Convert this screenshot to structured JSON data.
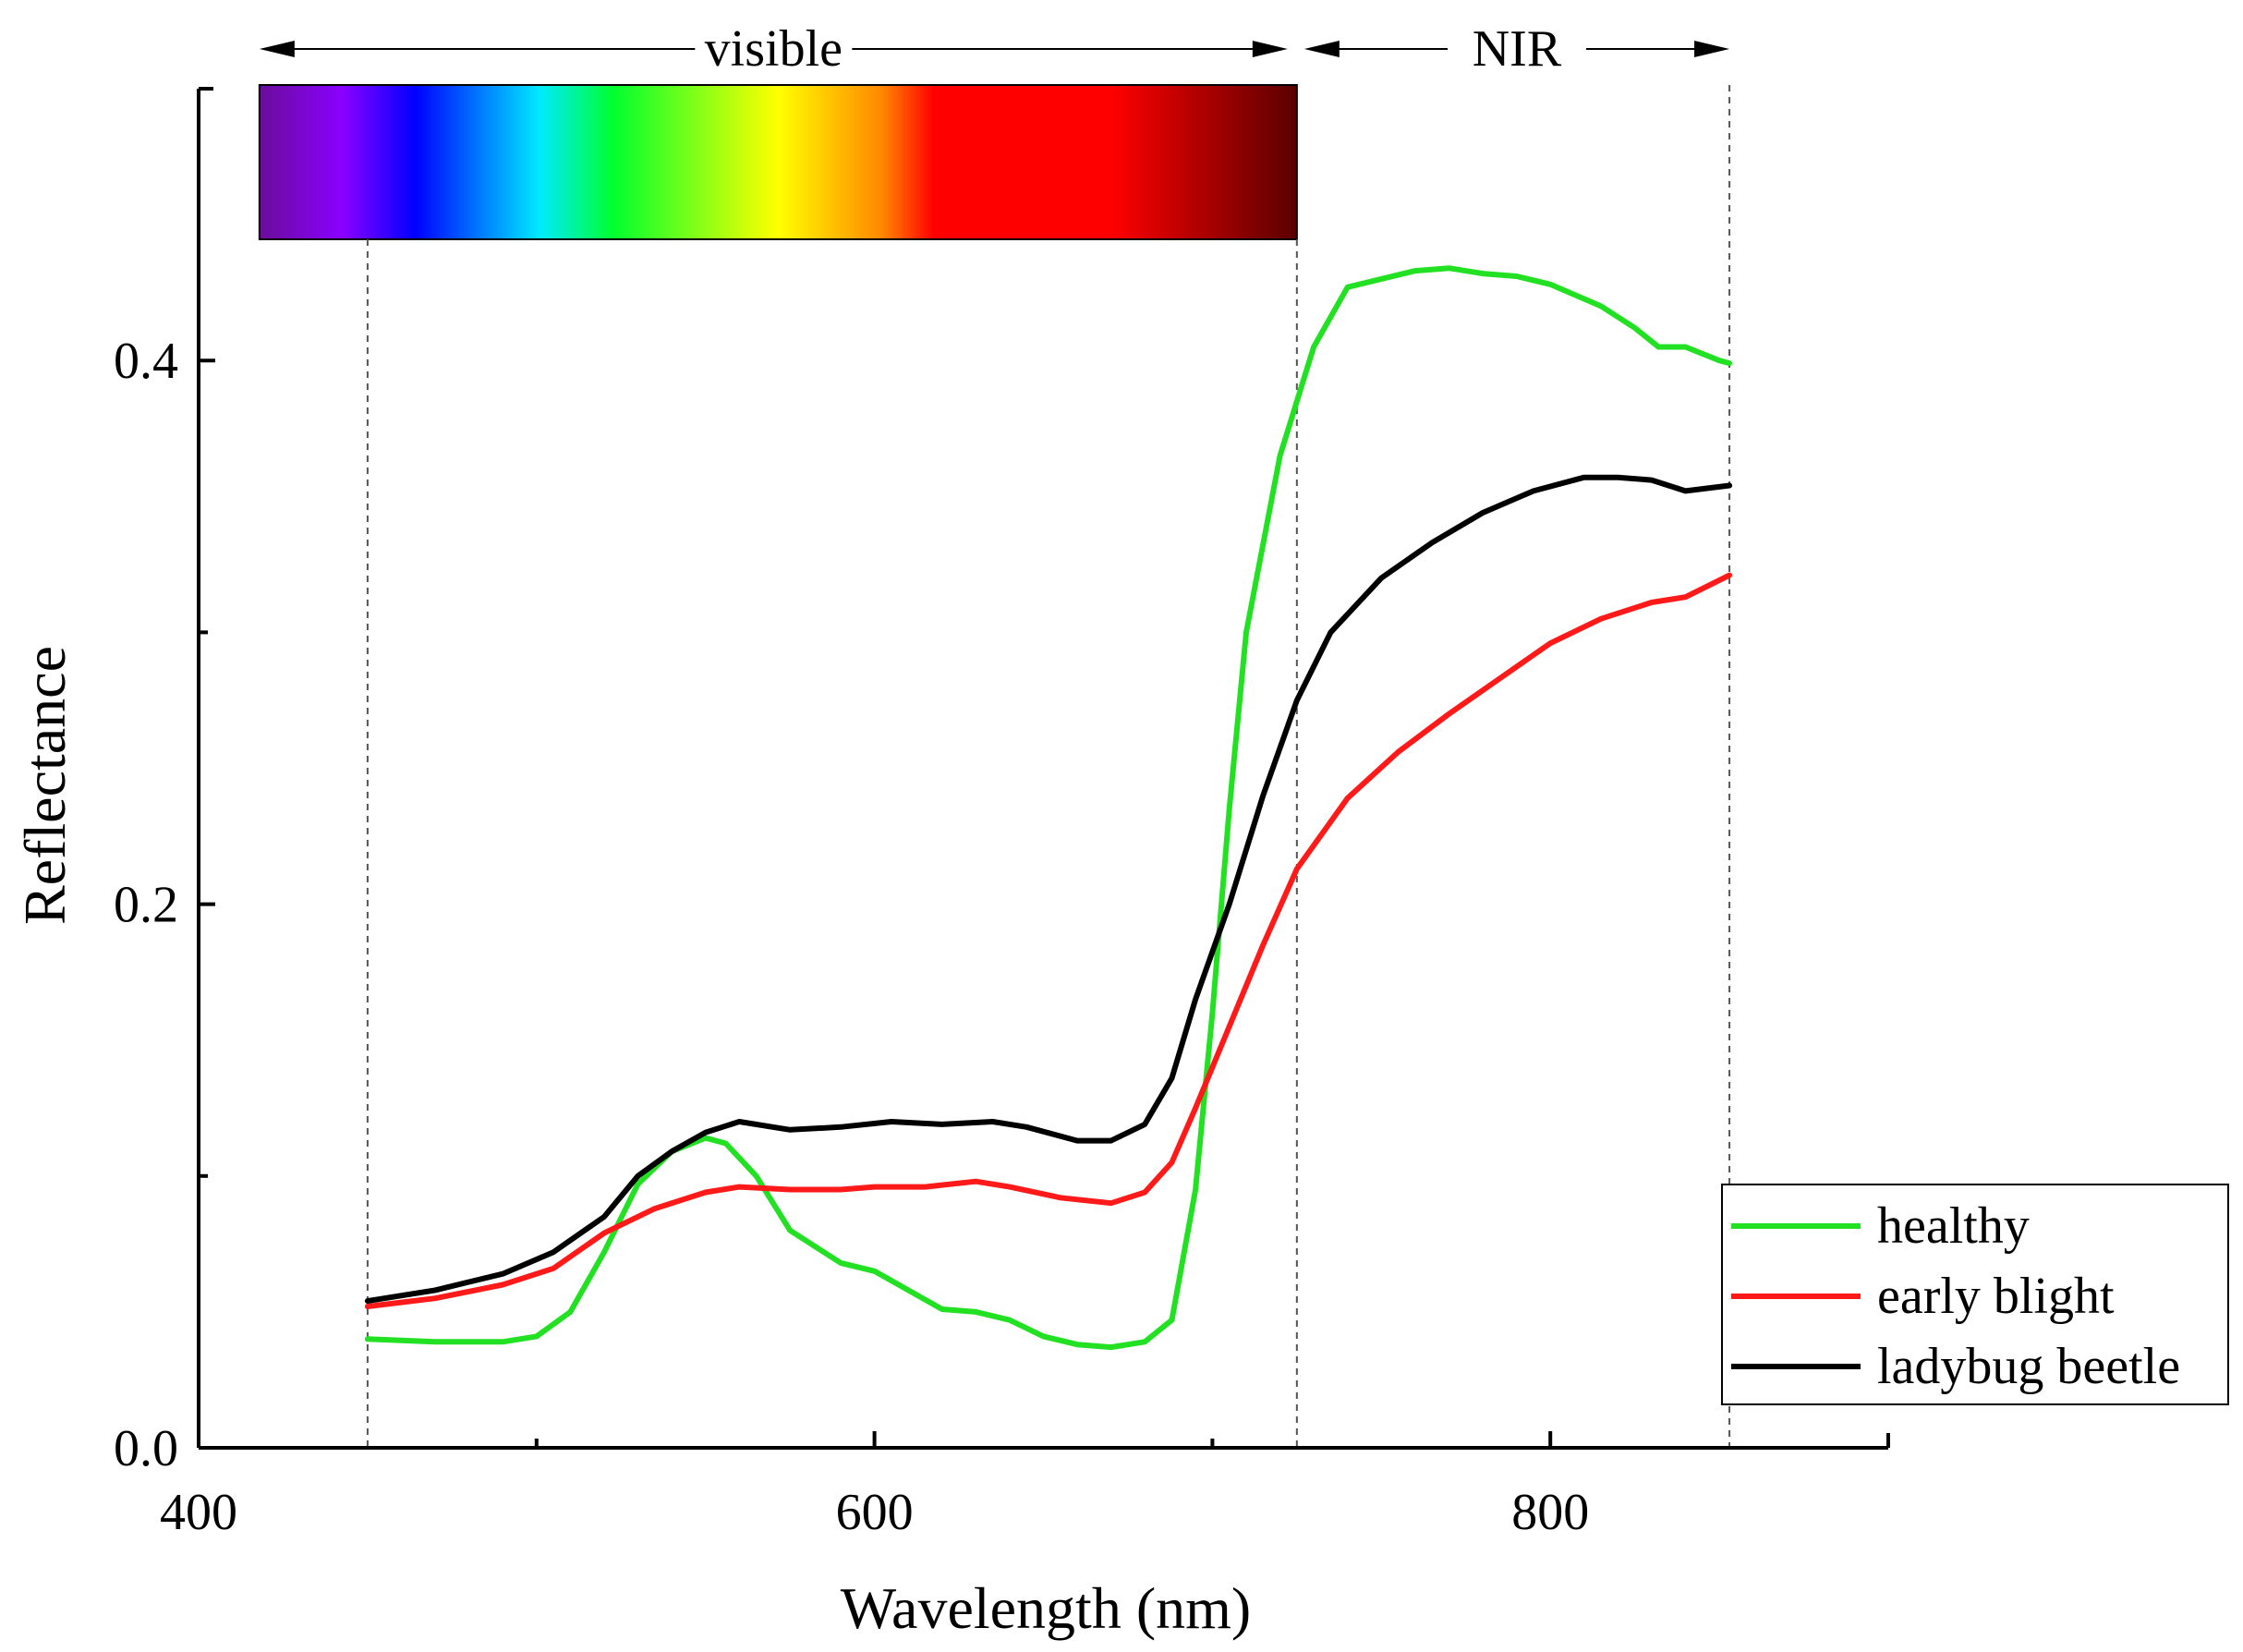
{
  "chart_data": {
    "type": "line",
    "title": "",
    "xlabel": "Wavelength (nm)",
    "ylabel": "Reflectance",
    "xlim": [
      400,
      900
    ],
    "ylim": [
      0,
      0.5
    ],
    "x_ticks": [
      400,
      600,
      800
    ],
    "x_ticks_minor": [
      500,
      700
    ],
    "y_ticks": [
      0.0,
      0.2,
      0.4
    ],
    "y_ticks_minor": [
      0.1,
      0.3
    ],
    "x_tick_labels": [
      "400",
      "600",
      "800"
    ],
    "y_tick_labels": [
      "0.0",
      "0.2",
      "0.4"
    ],
    "grid": false,
    "legend_position": "right",
    "region_markers": [
      450,
      725,
      853
    ],
    "regions": [
      {
        "label": "visible",
        "from": 418,
        "to": 725
      },
      {
        "label": "NIR",
        "from": 725,
        "to": 853
      }
    ],
    "spectrum_bar": {
      "from": 418,
      "to": 725,
      "colors": [
        "#6a0d9a",
        "#8a00ff",
        "#0000ff",
        "#00eaff",
        "#00ff30",
        "#ffff00",
        "#ff8800",
        "#ff0000",
        "#ff0000",
        "#5a0000"
      ],
      "stops": [
        0,
        0.08,
        0.15,
        0.27,
        0.34,
        0.5,
        0.6,
        0.65,
        0.82,
        1
      ]
    },
    "series": [
      {
        "name": "healthy",
        "color": "#22e022",
        "points": [
          [
            450,
            0.04
          ],
          [
            470,
            0.039
          ],
          [
            490,
            0.039
          ],
          [
            500,
            0.041
          ],
          [
            510,
            0.05
          ],
          [
            520,
            0.072
          ],
          [
            530,
            0.097
          ],
          [
            540,
            0.109
          ],
          [
            550,
            0.114
          ],
          [
            556,
            0.112
          ],
          [
            565,
            0.1
          ],
          [
            575,
            0.08
          ],
          [
            590,
            0.068
          ],
          [
            600,
            0.065
          ],
          [
            610,
            0.058
          ],
          [
            620,
            0.051
          ],
          [
            630,
            0.05
          ],
          [
            640,
            0.047
          ],
          [
            650,
            0.041
          ],
          [
            660,
            0.038
          ],
          [
            670,
            0.037
          ],
          [
            680,
            0.039
          ],
          [
            688,
            0.047
          ],
          [
            695,
            0.095
          ],
          [
            700,
            0.16
          ],
          [
            705,
            0.235
          ],
          [
            710,
            0.3
          ],
          [
            720,
            0.365
          ],
          [
            730,
            0.405
          ],
          [
            740,
            0.427
          ],
          [
            750,
            0.43
          ],
          [
            760,
            0.433
          ],
          [
            770,
            0.434
          ],
          [
            780,
            0.432
          ],
          [
            790,
            0.431
          ],
          [
            800,
            0.428
          ],
          [
            815,
            0.42
          ],
          [
            825,
            0.412
          ],
          [
            832,
            0.405
          ],
          [
            840,
            0.405
          ],
          [
            850,
            0.4
          ],
          [
            853,
            0.399
          ]
        ]
      },
      {
        "name": "early blight",
        "color": "#ff1a1a",
        "points": [
          [
            450,
            0.052
          ],
          [
            470,
            0.055
          ],
          [
            490,
            0.06
          ],
          [
            505,
            0.066
          ],
          [
            520,
            0.079
          ],
          [
            535,
            0.088
          ],
          [
            550,
            0.094
          ],
          [
            560,
            0.096
          ],
          [
            575,
            0.095
          ],
          [
            590,
            0.095
          ],
          [
            600,
            0.096
          ],
          [
            615,
            0.096
          ],
          [
            630,
            0.098
          ],
          [
            640,
            0.096
          ],
          [
            655,
            0.092
          ],
          [
            670,
            0.09
          ],
          [
            680,
            0.094
          ],
          [
            688,
            0.105
          ],
          [
            695,
            0.125
          ],
          [
            705,
            0.155
          ],
          [
            715,
            0.185
          ],
          [
            725,
            0.213
          ],
          [
            740,
            0.239
          ],
          [
            755,
            0.256
          ],
          [
            770,
            0.27
          ],
          [
            785,
            0.283
          ],
          [
            800,
            0.296
          ],
          [
            815,
            0.305
          ],
          [
            830,
            0.311
          ],
          [
            840,
            0.313
          ],
          [
            853,
            0.321
          ]
        ]
      },
      {
        "name": "ladybug beetle",
        "color": "#000000",
        "points": [
          [
            450,
            0.054
          ],
          [
            470,
            0.058
          ],
          [
            490,
            0.064
          ],
          [
            505,
            0.072
          ],
          [
            520,
            0.085
          ],
          [
            530,
            0.1
          ],
          [
            540,
            0.109
          ],
          [
            550,
            0.116
          ],
          [
            560,
            0.12
          ],
          [
            575,
            0.117
          ],
          [
            590,
            0.118
          ],
          [
            605,
            0.12
          ],
          [
            620,
            0.119
          ],
          [
            635,
            0.12
          ],
          [
            645,
            0.118
          ],
          [
            660,
            0.113
          ],
          [
            670,
            0.113
          ],
          [
            680,
            0.119
          ],
          [
            688,
            0.136
          ],
          [
            695,
            0.165
          ],
          [
            705,
            0.2
          ],
          [
            715,
            0.24
          ],
          [
            725,
            0.275
          ],
          [
            735,
            0.3
          ],
          [
            750,
            0.32
          ],
          [
            765,
            0.333
          ],
          [
            780,
            0.344
          ],
          [
            795,
            0.352
          ],
          [
            810,
            0.357
          ],
          [
            820,
            0.357
          ],
          [
            830,
            0.356
          ],
          [
            840,
            0.352
          ],
          [
            853,
            0.354
          ]
        ]
      }
    ]
  }
}
